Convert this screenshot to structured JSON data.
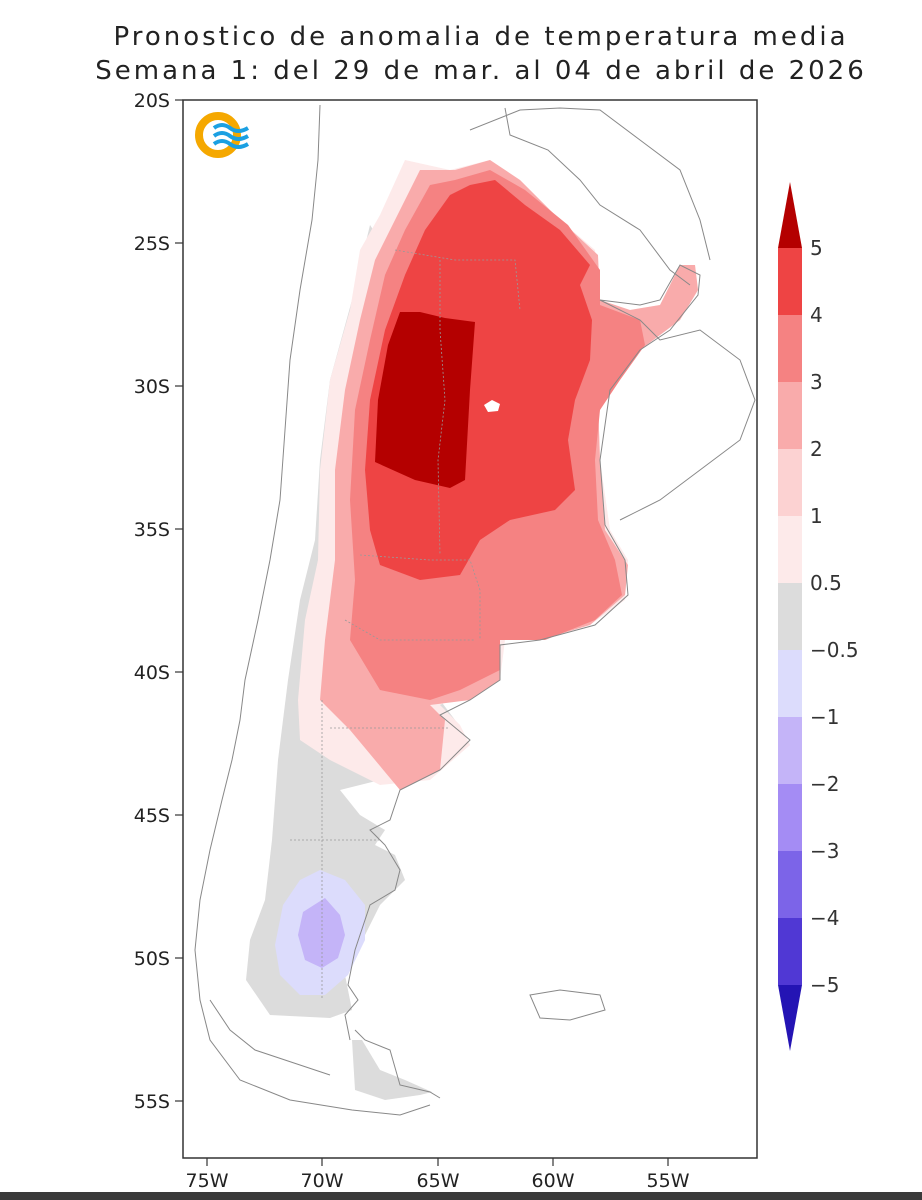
{
  "title": {
    "line1": "Pronostico de anomalia de temperatura media",
    "line2": "Semana 1: del 29 de mar. al 04 de abril de 2026"
  },
  "axes": {
    "lat_ticks": [
      "20S",
      "25S",
      "30S",
      "35S",
      "40S",
      "45S",
      "50S",
      "55S"
    ],
    "lon_ticks": [
      "75W",
      "70W",
      "65W",
      "60W",
      "55W"
    ]
  },
  "colorbar": {
    "labels": [
      "5",
      "4",
      "3",
      "2",
      "1",
      "0.5",
      "-0.5",
      "-1",
      "-2",
      "-3",
      "-4",
      "-5"
    ],
    "colors": [
      "#b40000",
      "#ee4444",
      "#f58282",
      "#f9abab",
      "#fcd2d2",
      "#fdeaea",
      "#dcdcdc",
      "#dcdcfc",
      "#c4b4f8",
      "#a48cf4",
      "#7c64e8",
      "#5038d4",
      "#2414b4"
    ]
  },
  "logo": {
    "name": "smn-logo",
    "colors": [
      "#f5a800",
      "#1ba0e2"
    ]
  },
  "chart_data": {
    "type": "heatmap",
    "title": "Pronostico de anomalia de temperatura media",
    "subtitle": "Semana 1: del 29 de mar. al 04 de abril de 2026",
    "xlim": [
      -76,
      -52
    ],
    "ylim": [
      -57,
      -20
    ],
    "x_ticks": [
      "75W",
      "70W",
      "65W",
      "60W",
      "55W"
    ],
    "y_ticks": [
      "20S",
      "25S",
      "30S",
      "35S",
      "40S",
      "45S",
      "50S",
      "55S"
    ],
    "levels": [
      -5,
      -4,
      -3,
      -2,
      -1,
      -0.5,
      0.5,
      1,
      2,
      3,
      4,
      5
    ],
    "regions": [
      {
        "anomaly_range": "0.5 to 1",
        "center_lon": -65,
        "center_lat": -34
      },
      {
        "anomaly_range": "1 to 2",
        "center_lon": -64,
        "center_lat": -33
      },
      {
        "anomaly_range": "2 to 3",
        "center_lon": -63,
        "center_lat": -32
      },
      {
        "anomaly_range": "3 to 4",
        "center_lon": -63,
        "center_lat": -31
      },
      {
        "anomaly_range": "4 to 5",
        "center_lon": -65.5,
        "center_lat": -31
      },
      {
        "anomaly_range": "-0.5 to 0.5",
        "center_lon": -70,
        "center_lat": -47
      },
      {
        "anomaly_range": "-1 to -0.5",
        "center_lon": -70,
        "center_lat": -49.5
      },
      {
        "anomaly_range": "-2 to -1",
        "center_lon": -70,
        "center_lat": -49.5
      }
    ]
  }
}
